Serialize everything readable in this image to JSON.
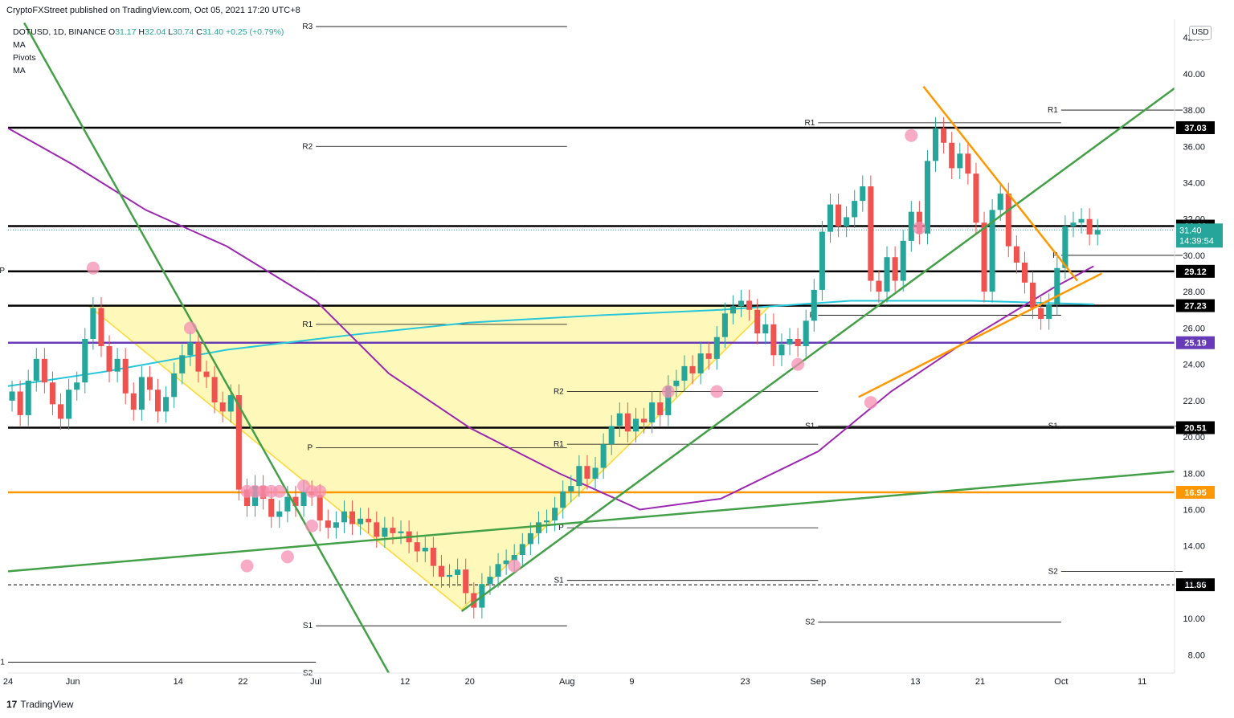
{
  "header": {
    "publisher_text": "CryptoFXStreet published on TradingView.com, Oct 05, 2021 17:20 UTC+8"
  },
  "legend": {
    "symbol": "DOTUSD, 1D, BINANCE",
    "open_label": "O",
    "open": "31.17",
    "high_label": "H",
    "high": "32.04",
    "low_label": "L",
    "low": "30.74",
    "close_label": "C",
    "close": "31.40",
    "change": "+0.25 (+0.79%)",
    "indicators": [
      "MA",
      "Pivots",
      "MA"
    ]
  },
  "currency_button": "USD",
  "footer": {
    "logo_text": "TradingView"
  },
  "colors": {
    "up": "#26a69a",
    "down": "#ef5350",
    "support": "#000000",
    "orange": "#ff9800",
    "green": "#43a047",
    "purple": "#9c27b0",
    "cyan": "#26c6da",
    "triangle": "#ffeb3b"
  },
  "chart_data": {
    "type": "candlestick",
    "symbol": "DOTUSD",
    "timeframe": "1D",
    "ylim": [
      7,
      43
    ],
    "y_ticks": [
      "8.00",
      "10.00",
      "12.00",
      "14.00",
      "16.00",
      "18.00",
      "20.00",
      "22.00",
      "24.00",
      "26.00",
      "28.00",
      "30.00",
      "32.00",
      "34.00",
      "36.00",
      "38.00",
      "40.00",
      "42.00"
    ],
    "x_ticks": [
      {
        "label": "24",
        "date": "2021-05-24"
      },
      {
        "label": "Jun",
        "date": "2021-06-01"
      },
      {
        "label": "14",
        "date": "2021-06-14"
      },
      {
        "label": "22",
        "date": "2021-06-22"
      },
      {
        "label": "Jul",
        "date": "2021-07-01"
      },
      {
        "label": "12",
        "date": "2021-07-12"
      },
      {
        "label": "20",
        "date": "2021-07-20"
      },
      {
        "label": "Aug",
        "date": "2021-08-01"
      },
      {
        "label": "9",
        "date": "2021-08-09"
      },
      {
        "label": "23",
        "date": "2021-08-23"
      },
      {
        "label": "Sep",
        "date": "2021-09-01"
      },
      {
        "label": "13",
        "date": "2021-09-13"
      },
      {
        "label": "21",
        "date": "2021-09-21"
      },
      {
        "label": "Oct",
        "date": "2021-10-01"
      },
      {
        "label": "11",
        "date": "2021-10-11"
      }
    ],
    "x_range": [
      "2021-05-24",
      "2021-10-15"
    ],
    "close_series": [
      [
        "2021-05-24",
        22.5
      ],
      [
        "2021-05-25",
        21.2
      ],
      [
        "2021-05-26",
        23.1
      ],
      [
        "2021-05-27",
        24.3
      ],
      [
        "2021-05-28",
        23.0
      ],
      [
        "2021-05-29",
        21.8
      ],
      [
        "2021-05-30",
        21.0
      ],
      [
        "2021-05-31",
        22.6
      ],
      [
        "2021-06-01",
        23.0
      ],
      [
        "2021-06-02",
        25.4
      ],
      [
        "2021-06-03",
        27.1
      ],
      [
        "2021-06-04",
        25.0
      ],
      [
        "2021-06-05",
        23.6
      ],
      [
        "2021-06-06",
        24.3
      ],
      [
        "2021-06-07",
        22.4
      ],
      [
        "2021-06-08",
        21.5
      ],
      [
        "2021-06-09",
        23.3
      ],
      [
        "2021-06-10",
        22.6
      ],
      [
        "2021-06-11",
        21.4
      ],
      [
        "2021-06-12",
        22.2
      ],
      [
        "2021-06-13",
        23.5
      ],
      [
        "2021-06-14",
        24.5
      ],
      [
        "2021-06-15",
        25.2
      ],
      [
        "2021-06-16",
        23.6
      ],
      [
        "2021-06-17",
        23.3
      ],
      [
        "2021-06-18",
        21.9
      ],
      [
        "2021-06-19",
        21.4
      ],
      [
        "2021-06-20",
        22.3
      ],
      [
        "2021-06-21",
        17.1
      ],
      [
        "2021-06-22",
        16.2
      ],
      [
        "2021-06-23",
        17.3
      ],
      [
        "2021-06-24",
        16.6
      ],
      [
        "2021-06-25",
        15.6
      ],
      [
        "2021-06-26",
        15.9
      ],
      [
        "2021-06-27",
        16.7
      ],
      [
        "2021-06-28",
        16.2
      ],
      [
        "2021-06-29",
        17.0
      ],
      [
        "2021-06-30",
        16.8
      ],
      [
        "2021-07-01",
        15.4
      ],
      [
        "2021-07-02",
        15.0
      ],
      [
        "2021-07-03",
        15.3
      ],
      [
        "2021-07-04",
        15.9
      ],
      [
        "2021-07-05",
        15.2
      ],
      [
        "2021-07-06",
        15.5
      ],
      [
        "2021-07-07",
        15.3
      ],
      [
        "2021-07-08",
        14.5
      ],
      [
        "2021-07-09",
        15.0
      ],
      [
        "2021-07-10",
        14.7
      ],
      [
        "2021-07-11",
        14.8
      ],
      [
        "2021-07-12",
        14.2
      ],
      [
        "2021-07-13",
        13.7
      ],
      [
        "2021-07-14",
        13.9
      ],
      [
        "2021-07-15",
        12.9
      ],
      [
        "2021-07-16",
        12.3
      ],
      [
        "2021-07-17",
        12.4
      ],
      [
        "2021-07-18",
        12.7
      ],
      [
        "2021-07-19",
        11.4
      ],
      [
        "2021-07-20",
        10.6
      ],
      [
        "2021-07-21",
        11.9
      ],
      [
        "2021-07-22",
        12.3
      ],
      [
        "2021-07-23",
        13.0
      ],
      [
        "2021-07-24",
        13.2
      ],
      [
        "2021-07-25",
        13.5
      ],
      [
        "2021-07-26",
        14.1
      ],
      [
        "2021-07-27",
        14.7
      ],
      [
        "2021-07-28",
        15.3
      ],
      [
        "2021-07-29",
        15.4
      ],
      [
        "2021-07-30",
        16.1
      ],
      [
        "2021-07-31",
        17.0
      ],
      [
        "2021-08-01",
        17.3
      ],
      [
        "2021-08-02",
        18.4
      ],
      [
        "2021-08-03",
        17.7
      ],
      [
        "2021-08-04",
        18.3
      ],
      [
        "2021-08-05",
        19.6
      ],
      [
        "2021-08-06",
        20.6
      ],
      [
        "2021-08-07",
        21.3
      ],
      [
        "2021-08-08",
        20.3
      ],
      [
        "2021-08-09",
        21.0
      ],
      [
        "2021-08-10",
        20.8
      ],
      [
        "2021-08-11",
        21.9
      ],
      [
        "2021-08-12",
        21.2
      ],
      [
        "2021-08-13",
        22.8
      ],
      [
        "2021-08-14",
        23.1
      ],
      [
        "2021-08-15",
        23.9
      ],
      [
        "2021-08-16",
        23.5
      ],
      [
        "2021-08-17",
        24.6
      ],
      [
        "2021-08-18",
        24.3
      ],
      [
        "2021-08-19",
        25.5
      ],
      [
        "2021-08-20",
        26.8
      ],
      [
        "2021-08-21",
        27.2
      ],
      [
        "2021-08-22",
        27.5
      ],
      [
        "2021-08-23",
        27.0
      ],
      [
        "2021-08-24",
        25.7
      ],
      [
        "2021-08-25",
        26.2
      ],
      [
        "2021-08-26",
        24.5
      ],
      [
        "2021-08-27",
        25.1
      ],
      [
        "2021-08-28",
        25.4
      ],
      [
        "2021-08-29",
        25.0
      ],
      [
        "2021-08-30",
        26.4
      ],
      [
        "2021-08-31",
        28.1
      ],
      [
        "2021-09-01",
        31.3
      ],
      [
        "2021-09-02",
        32.8
      ],
      [
        "2021-09-03",
        31.6
      ],
      [
        "2021-09-04",
        32.1
      ],
      [
        "2021-09-05",
        33.0
      ],
      [
        "2021-09-06",
        33.8
      ],
      [
        "2021-09-07",
        28.6
      ],
      [
        "2021-09-08",
        28.0
      ],
      [
        "2021-09-09",
        29.9
      ],
      [
        "2021-09-10",
        28.6
      ],
      [
        "2021-09-11",
        30.8
      ],
      [
        "2021-09-12",
        32.4
      ],
      [
        "2021-09-13",
        31.2
      ],
      [
        "2021-09-14",
        35.2
      ],
      [
        "2021-09-15",
        37.0
      ],
      [
        "2021-09-16",
        36.2
      ],
      [
        "2021-09-17",
        34.8
      ],
      [
        "2021-09-18",
        35.6
      ],
      [
        "2021-09-19",
        34.5
      ],
      [
        "2021-09-20",
        31.8
      ],
      [
        "2021-09-21",
        28.0
      ],
      [
        "2021-09-22",
        32.5
      ],
      [
        "2021-09-23",
        33.4
      ],
      [
        "2021-09-24",
        30.5
      ],
      [
        "2021-09-25",
        29.6
      ],
      [
        "2021-09-26",
        28.5
      ],
      [
        "2021-09-27",
        27.1
      ],
      [
        "2021-09-28",
        26.5
      ],
      [
        "2021-09-29",
        27.3
      ],
      [
        "2021-09-30",
        29.3
      ],
      [
        "2021-10-01",
        31.6
      ],
      [
        "2021-10-02",
        31.8
      ],
      [
        "2021-10-03",
        32.0
      ],
      [
        "2021-10-04",
        31.15
      ],
      [
        "2021-10-05",
        31.4
      ]
    ],
    "horizontal_levels": [
      {
        "value": 37.03,
        "label": "37.03",
        "color": "#000000"
      },
      {
        "value": 31.61,
        "label": "31.61",
        "color": "#000000"
      },
      {
        "value": 29.12,
        "label": "29.12",
        "color": "#000000"
      },
      {
        "value": 27.23,
        "label": "27.23",
        "color": "#000000"
      },
      {
        "value": 25.19,
        "label": "25.19",
        "color": "#673ab7"
      },
      {
        "value": 20.51,
        "label": "20.51",
        "color": "#000000"
      },
      {
        "value": 16.95,
        "label": "16.95",
        "color": "#ff9800"
      },
      {
        "value": 11.86,
        "label": "11.86",
        "color": "#000000"
      }
    ],
    "last_price": {
      "value": 31.4,
      "label": "31.40",
      "countdown": "14:39:54"
    },
    "pivot_blocks": [
      {
        "from": "2021-05-24",
        "to": "2021-06-30",
        "levels": [
          {
            "name": "P",
            "value": 29.15
          },
          {
            "name": "S1",
            "value": 7.6
          }
        ]
      },
      {
        "from": "2021-07-01",
        "to": "2021-07-31",
        "levels": [
          {
            "name": "R3",
            "value": 42.6
          },
          {
            "name": "R2",
            "value": 36.0
          },
          {
            "name": "R1",
            "value": 26.2
          },
          {
            "name": "P",
            "value": 19.4
          },
          {
            "name": "S1",
            "value": 9.6
          },
          {
            "name": "S2",
            "value": 7.0
          }
        ]
      },
      {
        "from": "2021-08-01",
        "to": "2021-08-31",
        "levels": [
          {
            "name": "R2",
            "value": 22.5
          },
          {
            "name": "R1",
            "value": 19.6
          },
          {
            "name": "P",
            "value": 15.0
          },
          {
            "name": "S1",
            "value": 12.1
          }
        ]
      },
      {
        "from": "2021-09-01",
        "to": "2021-09-30",
        "levels": [
          {
            "name": "R1",
            "value": 37.3
          },
          {
            "name": "P",
            "value": 26.7
          },
          {
            "name": "S1",
            "value": 20.6
          },
          {
            "name": "S2",
            "value": 9.8
          }
        ]
      },
      {
        "from": "2021-10-01",
        "to": "2021-10-15",
        "levels": [
          {
            "name": "R1",
            "value": 38.0
          },
          {
            "name": "P",
            "value": 30.0
          },
          {
            "name": "S1",
            "value": 20.6
          },
          {
            "name": "S2",
            "value": 12.6
          }
        ]
      }
    ],
    "moving_averages": [
      {
        "name": "MA",
        "color": "#26c6da",
        "points": [
          [
            "2021-05-24",
            22.8
          ],
          [
            "2021-06-05",
            23.6
          ],
          [
            "2021-06-20",
            24.8
          ],
          [
            "2021-07-05",
            25.6
          ],
          [
            "2021-07-20",
            26.3
          ],
          [
            "2021-08-05",
            26.7
          ],
          [
            "2021-08-20",
            27.0
          ],
          [
            "2021-09-05",
            27.5
          ],
          [
            "2021-09-20",
            27.5
          ],
          [
            "2021-10-05",
            27.3
          ]
        ]
      },
      {
        "name": "MA",
        "color": "#9c27b0",
        "points": [
          [
            "2021-05-24",
            37.0
          ],
          [
            "2021-06-01",
            35.0
          ],
          [
            "2021-06-10",
            32.5
          ],
          [
            "2021-06-20",
            30.5
          ],
          [
            "2021-07-01",
            27.5
          ],
          [
            "2021-07-10",
            23.5
          ],
          [
            "2021-07-20",
            20.5
          ],
          [
            "2021-07-31",
            18.0
          ],
          [
            "2021-08-10",
            16.0
          ],
          [
            "2021-08-20",
            16.6
          ],
          [
            "2021-09-01",
            19.2
          ],
          [
            "2021-09-10",
            22.5
          ],
          [
            "2021-09-20",
            25.5
          ],
          [
            "2021-09-30",
            28.2
          ],
          [
            "2021-10-05",
            29.4
          ]
        ]
      }
    ],
    "trendlines": [
      {
        "color": "#43a047",
        "from": [
          "2021-05-26",
          42.8
        ],
        "to": [
          "2021-07-10",
          7.0
        ]
      },
      {
        "color": "#43a047",
        "from": [
          "2021-05-24",
          12.6
        ],
        "to": [
          "2021-10-15",
          18.1
        ]
      },
      {
        "color": "#43a047",
        "from": [
          "2021-07-19",
          10.4
        ],
        "to": [
          "2021-10-15",
          39.2
        ]
      },
      {
        "color": "#ff9800",
        "from": [
          "2021-09-14",
          39.3
        ],
        "to": [
          "2021-10-03",
          28.6
        ]
      },
      {
        "color": "#ff9800",
        "from": [
          "2021-09-06",
          22.2
        ],
        "to": [
          "2021-10-06",
          29.0
        ]
      }
    ],
    "cup_triangle": [
      [
        "2021-06-03",
        27.2
      ],
      [
        "2021-08-26",
        27.2
      ],
      [
        "2021-07-19",
        10.5
      ]
    ],
    "markers": [
      [
        "2021-06-03",
        29.3
      ],
      [
        "2021-06-15",
        26.0
      ],
      [
        "2021-06-22",
        17.0
      ],
      [
        "2021-06-23",
        17.0
      ],
      [
        "2021-06-24",
        17.0
      ],
      [
        "2021-06-25",
        17.0
      ],
      [
        "2021-06-26",
        17.0
      ],
      [
        "2021-06-22",
        12.9
      ],
      [
        "2021-06-27",
        13.4
      ],
      [
        "2021-06-29",
        17.3
      ],
      [
        "2021-06-30",
        17.0
      ],
      [
        "2021-07-01",
        17.0
      ],
      [
        "2021-06-30",
        15.1
      ],
      [
        "2021-07-25",
        12.9
      ],
      [
        "2021-08-13",
        22.5
      ],
      [
        "2021-08-19",
        22.5
      ],
      [
        "2021-08-29",
        24.0
      ],
      [
        "2021-09-07",
        21.9
      ],
      [
        "2021-09-12",
        36.6
      ],
      [
        "2021-09-13",
        31.5
      ]
    ]
  }
}
